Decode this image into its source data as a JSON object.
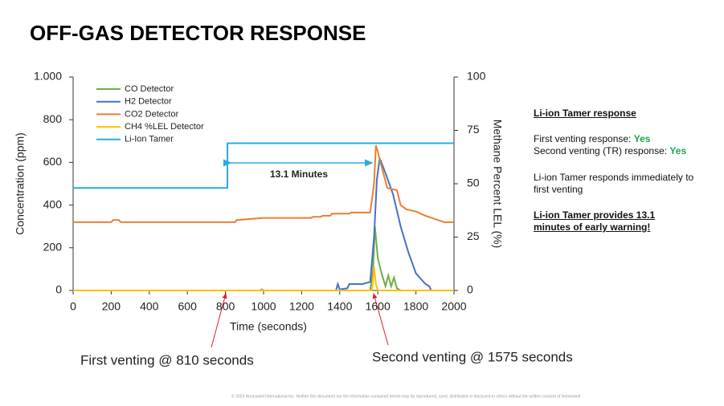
{
  "slide_title": "OFF-GAS DETECTOR RESPONSE",
  "chart_data": {
    "type": "line",
    "xlabel": "Time (seconds)",
    "ylabel": "Concentration (ppm)",
    "y2label": "Methane Percent LEL (%)",
    "xlim": [
      0,
      2000
    ],
    "xticks": [
      0,
      200,
      400,
      600,
      800,
      1000,
      1200,
      1400,
      1600,
      1800,
      2000
    ],
    "ylim": [
      0,
      1000
    ],
    "yticks": [
      0,
      200,
      400,
      600,
      800,
      {
        "value": 1000,
        "label": "1.000"
      }
    ],
    "y2lim": [
      0,
      100
    ],
    "y2ticks": [
      0,
      25,
      50,
      75,
      100
    ],
    "grid": false,
    "legend": "upper left",
    "series": [
      {
        "name": "CO Detector",
        "color": "#70ad47",
        "x": [
          0,
          980,
          990,
          1000,
          1560,
          1575,
          1585,
          1600,
          1620,
          1640,
          1655,
          1670,
          1685,
          1700,
          1720,
          2000
        ],
        "values": [
          0,
          0,
          5,
          0,
          0,
          100,
          300,
          150,
          80,
          20,
          70,
          20,
          60,
          10,
          0,
          0
        ]
      },
      {
        "name": "H2 Detector",
        "color": "#4472c4",
        "x": [
          0,
          1380,
          1390,
          1400,
          1440,
          1450,
          1520,
          1560,
          1580,
          1595,
          1610,
          1640,
          1680,
          1720,
          1760,
          1800,
          1850,
          1870,
          1880,
          2000
        ],
        "values": [
          0,
          0,
          30,
          5,
          10,
          30,
          30,
          40,
          250,
          520,
          620,
          550,
          450,
          300,
          180,
          80,
          30,
          20,
          0,
          0
        ]
      },
      {
        "name": "CO2 Detector",
        "color": "#ed7d31",
        "x": [
          0,
          200,
          210,
          240,
          250,
          850,
          860,
          1000,
          1250,
          1260,
          1300,
          1310,
          1350,
          1360,
          1450,
          1460,
          1560,
          1580,
          1590,
          1600,
          1620,
          1650,
          1700,
          1720,
          1750,
          1800,
          1850,
          1900,
          1950,
          2000
        ],
        "values": [
          320,
          320,
          330,
          330,
          320,
          320,
          330,
          340,
          340,
          345,
          345,
          350,
          350,
          360,
          360,
          365,
          365,
          500,
          680,
          650,
          580,
          480,
          470,
          400,
          380,
          370,
          350,
          335,
          320,
          320
        ]
      },
      {
        "name": "CH4 %LEL Detector",
        "color": "#ffc000",
        "axis": "y2",
        "x": [
          0,
          1570,
          1580,
          1590,
          1600,
          2000
        ],
        "values": [
          0,
          0,
          11,
          3,
          0,
          0
        ]
      },
      {
        "name": "Li-Ion Tamer",
        "color": "#29abe2",
        "x": [
          0,
          810,
          810,
          2000
        ],
        "values": [
          480,
          480,
          690,
          690
        ]
      }
    ],
    "annotations": [
      "13.1 Minutes",
      "First venting @ 810 seconds",
      "Second venting @ 1575 seconds"
    ]
  },
  "side_panel": {
    "heading": "Li-ion Tamer response",
    "first_response": "First venting response: ",
    "first_answer": "Yes",
    "second_response": "Second venting (TR) response: ",
    "second_answer": "Yes",
    "immediate": "Li-ion Tamer responds immediately to first venting",
    "warning": "Li-ion Tamer provides 13.1 minutes of early warning!"
  },
  "footer": "© 2024 Honeywell International Inc. Neither this document nor the information contained herein may be reproduced, used, distributed or disclosed to others without the written consent of Honeywell"
}
